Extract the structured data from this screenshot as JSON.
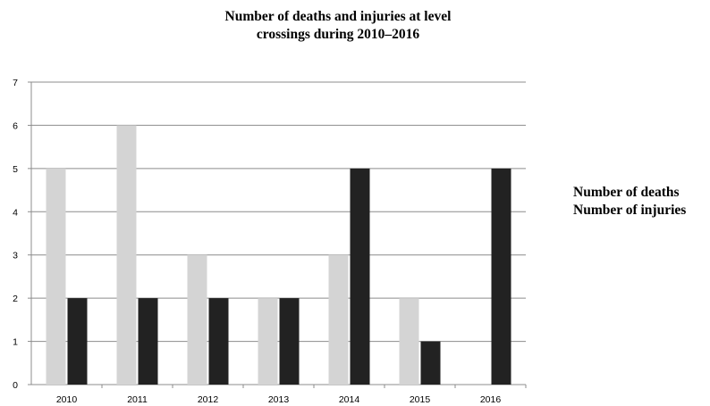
{
  "chart_data": {
    "type": "bar",
    "title_lines": [
      "Number of deaths and injuries at level",
      "crossings during 2010–2016"
    ],
    "categories": [
      "2010",
      "2011",
      "2012",
      "2013",
      "2014",
      "2015",
      "2016"
    ],
    "series": [
      {
        "name": "Number of deaths",
        "values": [
          5,
          6,
          3,
          2,
          3,
          2,
          0
        ],
        "color": "#d4d4d4"
      },
      {
        "name": "Number of injuries",
        "values": [
          2,
          2,
          2,
          2,
          5,
          1,
          5
        ],
        "color": "#222222"
      }
    ],
    "yticks": [
      "0",
      "1",
      "2",
      "3",
      "4",
      "5",
      "6",
      "7"
    ],
    "ylim": [
      0,
      7
    ],
    "grid": true,
    "legend_position": "right"
  }
}
